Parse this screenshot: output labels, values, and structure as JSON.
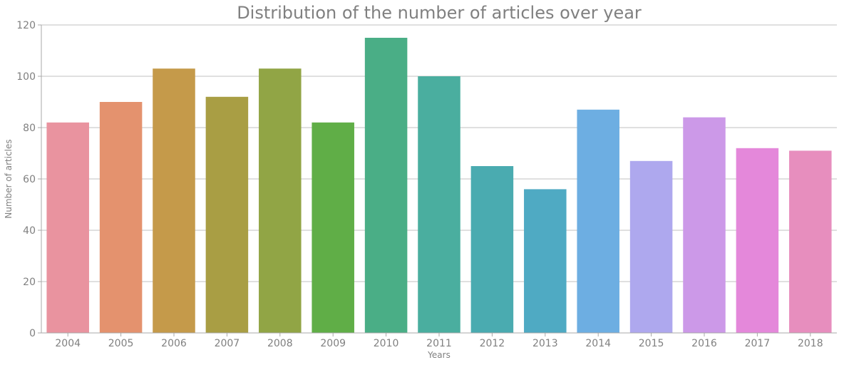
{
  "chart_data": {
    "type": "bar",
    "title": "Distribution of the number of articles over year",
    "xlabel": "Years",
    "ylabel": "Number of articles",
    "categories": [
      "2004",
      "2005",
      "2006",
      "2007",
      "2008",
      "2009",
      "2010",
      "2011",
      "2012",
      "2013",
      "2014",
      "2015",
      "2016",
      "2017",
      "2018"
    ],
    "values": [
      82,
      90,
      103,
      92,
      103,
      82,
      115,
      100,
      65,
      56,
      87,
      67,
      84,
      72,
      71
    ],
    "colors": [
      "#e9939f",
      "#e4926e",
      "#c59a4a",
      "#a99e44",
      "#91a545",
      "#60ae47",
      "#4aae86",
      "#4aae9f",
      "#4aabb0",
      "#4faac3",
      "#6daee2",
      "#aea8ee",
      "#cc99e8",
      "#e488da",
      "#e78ebe"
    ],
    "ylim": [
      0,
      120
    ],
    "yticks": [
      0,
      20,
      40,
      60,
      80,
      100,
      120
    ],
    "grid": true,
    "legend": "none"
  }
}
